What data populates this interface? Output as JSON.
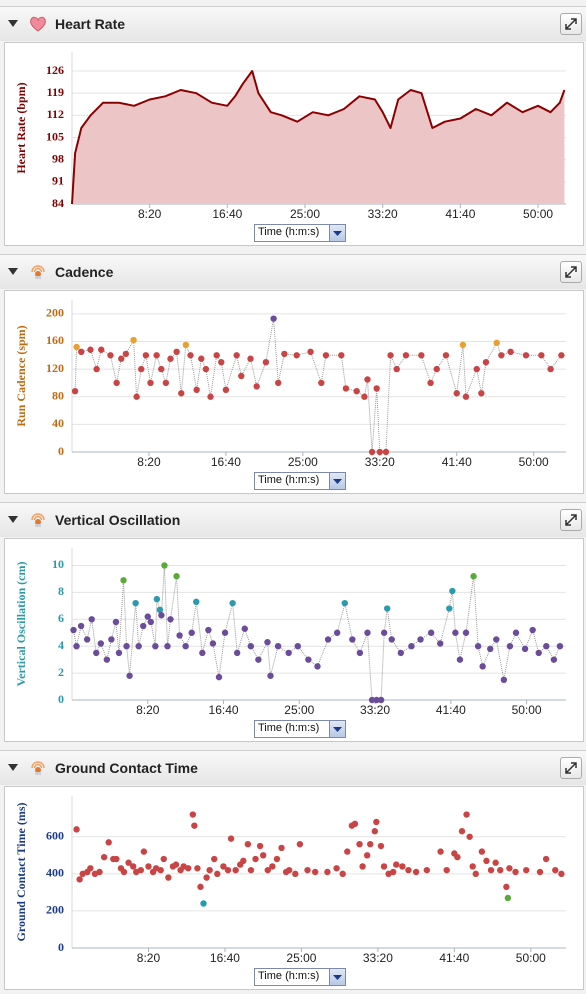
{
  "chart_data": [
    {
      "type": "line",
      "title": "Heart Rate",
      "ylabel": "Heart Rate (bpm)",
      "xlabel": "Time (h:m:s)",
      "axis_color": "#800000",
      "line_color": "#8b0000",
      "area_color": "#ecc6c6",
      "grid": true,
      "xlim": [
        0,
        3180
      ],
      "ylim": [
        84,
        132
      ],
      "xticks": [
        {
          "value": 500,
          "label": "8:20"
        },
        {
          "value": 1000,
          "label": "16:40"
        },
        {
          "value": 1500,
          "label": "25:00"
        },
        {
          "value": 2000,
          "label": "33:20"
        },
        {
          "value": 2500,
          "label": "41:40"
        },
        {
          "value": 3000,
          "label": "50:00"
        }
      ],
      "yticks": [
        84,
        91,
        98,
        105,
        112,
        119,
        126
      ],
      "x": [
        0,
        20,
        60,
        120,
        200,
        300,
        400,
        500,
        600,
        700,
        800,
        900,
        1000,
        1050,
        1100,
        1160,
        1200,
        1280,
        1350,
        1450,
        1550,
        1650,
        1750,
        1850,
        1950,
        2000,
        2050,
        2100,
        2180,
        2250,
        2320,
        2400,
        2500,
        2600,
        2700,
        2800,
        2900,
        3000,
        3080,
        3140,
        3170
      ],
      "values": [
        84,
        100,
        108,
        112,
        116,
        116,
        115,
        117,
        118,
        120,
        119,
        116,
        115,
        118,
        122,
        126,
        119,
        113,
        112,
        110,
        113,
        112,
        114,
        118,
        117,
        113,
        108,
        117,
        120,
        119,
        108,
        110,
        111,
        114,
        112,
        116,
        113,
        115,
        113,
        116,
        120
      ]
    },
    {
      "type": "scatter",
      "title": "Cadence",
      "ylabel": "Run Cadence (spm)",
      "xlabel": "Time (h:m:s)",
      "axis_color": "#c06a10",
      "line_color": "#999999",
      "connect": true,
      "grid": true,
      "xlim": [
        0,
        3210
      ],
      "ylim": [
        0,
        220
      ],
      "xticks": [
        {
          "value": 500,
          "label": "8:20"
        },
        {
          "value": 1000,
          "label": "16:40"
        },
        {
          "value": 1500,
          "label": "25:00"
        },
        {
          "value": 2000,
          "label": "33:20"
        },
        {
          "value": 2500,
          "label": "41:40"
        },
        {
          "value": 3000,
          "label": "50:00"
        }
      ],
      "yticks": [
        0,
        40,
        80,
        120,
        160,
        200
      ],
      "x": [
        20,
        30,
        60,
        120,
        160,
        190,
        250,
        290,
        320,
        350,
        400,
        420,
        450,
        480,
        510,
        550,
        580,
        610,
        640,
        680,
        710,
        740,
        770,
        810,
        840,
        870,
        900,
        940,
        970,
        1000,
        1070,
        1100,
        1160,
        1200,
        1260,
        1310,
        1340,
        1380,
        1460,
        1550,
        1620,
        1650,
        1750,
        1780,
        1850,
        1900,
        1920,
        1950,
        1980,
        2000,
        2040,
        2070,
        2110,
        2170,
        2270,
        2330,
        2370,
        2430,
        2500,
        2540,
        2560,
        2630,
        2660,
        2690,
        2760,
        2790,
        2850,
        2950,
        3050,
        3110,
        3180
      ],
      "values": [
        88,
        152,
        145,
        148,
        120,
        148,
        140,
        100,
        135,
        142,
        162,
        80,
        120,
        140,
        100,
        140,
        120,
        100,
        135,
        145,
        85,
        155,
        140,
        90,
        135,
        120,
        80,
        140,
        130,
        90,
        140,
        110,
        135,
        95,
        130,
        193,
        100,
        142,
        140,
        145,
        100,
        140,
        140,
        92,
        88,
        80,
        105,
        0,
        92,
        0,
        0,
        140,
        120,
        140,
        140,
        100,
        120,
        140,
        85,
        155,
        80,
        120,
        85,
        130,
        158,
        140,
        145,
        140,
        140,
        120,
        140
      ],
      "colors": [
        "#c94545",
        "#e8a030",
        "#c94545",
        "#c94545",
        "#c94545",
        "#c94545",
        "#c94545",
        "#c94545",
        "#c94545",
        "#c94545",
        "#e8a030",
        "#c94545",
        "#c94545",
        "#c94545",
        "#c94545",
        "#c94545",
        "#c94545",
        "#c94545",
        "#c94545",
        "#c94545",
        "#c94545",
        "#e8a030",
        "#c94545",
        "#c94545",
        "#c94545",
        "#c94545",
        "#c94545",
        "#c94545",
        "#c94545",
        "#c94545",
        "#c94545",
        "#c94545",
        "#c94545",
        "#c94545",
        "#c94545",
        "#6b4c9a",
        "#c94545",
        "#c94545",
        "#c94545",
        "#c94545",
        "#c94545",
        "#c94545",
        "#c94545",
        "#c94545",
        "#c94545",
        "#c94545",
        "#c94545",
        "#c94545",
        "#c94545",
        "#c94545",
        "#c94545",
        "#c94545",
        "#c94545",
        "#c94545",
        "#c94545",
        "#c94545",
        "#c94545",
        "#c94545",
        "#c94545",
        "#e8a030",
        "#c94545",
        "#c94545",
        "#c94545",
        "#c94545",
        "#e8a030",
        "#c94545",
        "#c94545",
        "#c94545",
        "#c94545",
        "#c94545",
        "#c94545"
      ]
    },
    {
      "type": "scatter",
      "title": "Vertical Oscillation",
      "ylabel": "Vertical Oscillation (cm)",
      "xlabel": "Time (h:m:s)",
      "axis_color": "#2a9aaa",
      "line_color": "#999999",
      "connect": true,
      "grid": true,
      "xlim": [
        0,
        3260
      ],
      "ylim": [
        0,
        11.3
      ],
      "xticks": [
        {
          "value": 500,
          "label": "8:20"
        },
        {
          "value": 1000,
          "label": "16:40"
        },
        {
          "value": 1500,
          "label": "25:00"
        },
        {
          "value": 2000,
          "label": "33:20"
        },
        {
          "value": 2500,
          "label": "41:40"
        },
        {
          "value": 3000,
          "label": "50:00"
        }
      ],
      "yticks": [
        0,
        2,
        4,
        6,
        8,
        10
      ],
      "x": [
        10,
        30,
        60,
        100,
        130,
        160,
        190,
        230,
        260,
        290,
        310,
        340,
        360,
        380,
        420,
        440,
        470,
        500,
        520,
        550,
        560,
        580,
        590,
        610,
        630,
        650,
        690,
        710,
        750,
        790,
        820,
        860,
        900,
        930,
        970,
        1010,
        1060,
        1090,
        1140,
        1180,
        1230,
        1290,
        1310,
        1360,
        1430,
        1490,
        1560,
        1620,
        1690,
        1750,
        1800,
        1850,
        1900,
        1950,
        1980,
        2010,
        2040,
        2060,
        2080,
        2110,
        2170,
        2240,
        2300,
        2370,
        2430,
        2490,
        2510,
        2530,
        2560,
        2600,
        2650,
        2680,
        2710,
        2760,
        2800,
        2850,
        2890,
        2930,
        2990,
        3040,
        3080,
        3130,
        3180,
        3220
      ],
      "values": [
        5.2,
        4.0,
        5.5,
        4.5,
        6.0,
        3.5,
        4.2,
        3.0,
        4.5,
        5.8,
        3.5,
        8.9,
        4.0,
        1.8,
        7.2,
        4.0,
        5.5,
        6.2,
        5.8,
        4.0,
        7.5,
        6.7,
        6.3,
        10,
        4.0,
        6.0,
        9.2,
        4.8,
        4.0,
        5.0,
        7.3,
        3.5,
        5.2,
        4.2,
        1.7,
        5.0,
        7.2,
        3.5,
        5.3,
        4.0,
        3.0,
        4.3,
        1.8,
        4.0,
        3.5,
        4.0,
        3.0,
        2.5,
        4.5,
        5.0,
        7.2,
        4.5,
        3.5,
        5.0,
        0,
        0,
        0,
        5.0,
        6.8,
        4.5,
        3.5,
        4.0,
        4.5,
        5.0,
        4.2,
        6.8,
        8.1,
        5.0,
        3.0,
        5.0,
        9.2,
        4.0,
        2.5,
        3.8,
        4.5,
        1.5,
        4.0,
        5.0,
        3.8,
        5.2,
        3.5,
        4.0,
        3.0,
        4.0
      ],
      "colors": [
        "#6b4c9a",
        "#6b4c9a",
        "#6b4c9a",
        "#6b4c9a",
        "#6b4c9a",
        "#6b4c9a",
        "#6b4c9a",
        "#6b4c9a",
        "#6b4c9a",
        "#6b4c9a",
        "#6b4c9a",
        "#5aaa3a",
        "#6b4c9a",
        "#6b4c9a",
        "#2a9ab0",
        "#6b4c9a",
        "#6b4c9a",
        "#6b4c9a",
        "#6b4c9a",
        "#6b4c9a",
        "#2a9ab0",
        "#2a9ab0",
        "#6b4c9a",
        "#5aaa3a",
        "#6b4c9a",
        "#6b4c9a",
        "#5aaa3a",
        "#6b4c9a",
        "#6b4c9a",
        "#6b4c9a",
        "#2a9ab0",
        "#6b4c9a",
        "#6b4c9a",
        "#6b4c9a",
        "#6b4c9a",
        "#6b4c9a",
        "#2a9ab0",
        "#6b4c9a",
        "#6b4c9a",
        "#6b4c9a",
        "#6b4c9a",
        "#6b4c9a",
        "#6b4c9a",
        "#6b4c9a",
        "#6b4c9a",
        "#6b4c9a",
        "#6b4c9a",
        "#6b4c9a",
        "#6b4c9a",
        "#6b4c9a",
        "#2a9ab0",
        "#6b4c9a",
        "#6b4c9a",
        "#6b4c9a",
        "#6b4c9a",
        "#6b4c9a",
        "#6b4c9a",
        "#6b4c9a",
        "#2a9ab0",
        "#6b4c9a",
        "#6b4c9a",
        "#6b4c9a",
        "#6b4c9a",
        "#6b4c9a",
        "#6b4c9a",
        "#2a9ab0",
        "#2a9ab0",
        "#6b4c9a",
        "#6b4c9a",
        "#6b4c9a",
        "#5aaa3a",
        "#6b4c9a",
        "#6b4c9a",
        "#6b4c9a",
        "#6b4c9a",
        "#6b4c9a",
        "#6b4c9a",
        "#6b4c9a",
        "#6b4c9a",
        "#6b4c9a",
        "#6b4c9a",
        "#6b4c9a",
        "#6b4c9a",
        "#6b4c9a"
      ]
    },
    {
      "type": "scatter",
      "title": "Ground Contact Time",
      "ylabel": "Ground Contact Time (ms)",
      "xlabel": "Time (h:m:s)",
      "axis_color": "#1a3a8a",
      "connect": false,
      "grid": true,
      "xlim": [
        0,
        3230
      ],
      "ylim": [
        0,
        820
      ],
      "xticks": [
        {
          "value": 500,
          "label": "8:20"
        },
        {
          "value": 1000,
          "label": "16:40"
        },
        {
          "value": 1500,
          "label": "25:00"
        },
        {
          "value": 2000,
          "label": "33:20"
        },
        {
          "value": 2500,
          "label": "41:40"
        },
        {
          "value": 3000,
          "label": "50:00"
        }
      ],
      "yticks": [
        0,
        200,
        400,
        600
      ],
      "x": [
        30,
        50,
        70,
        100,
        120,
        150,
        180,
        210,
        240,
        270,
        290,
        320,
        340,
        370,
        400,
        420,
        450,
        470,
        500,
        530,
        550,
        580,
        600,
        630,
        660,
        680,
        710,
        730,
        760,
        790,
        800,
        820,
        840,
        860,
        880,
        900,
        930,
        950,
        990,
        1020,
        1040,
        1070,
        1100,
        1120,
        1150,
        1170,
        1200,
        1230,
        1250,
        1280,
        1310,
        1340,
        1370,
        1400,
        1420,
        1460,
        1490,
        1540,
        1590,
        1670,
        1730,
        1770,
        1800,
        1830,
        1850,
        1880,
        1900,
        1930,
        1950,
        1980,
        1990,
        2020,
        2040,
        2070,
        2100,
        2120,
        2160,
        2200,
        2250,
        2320,
        2410,
        2450,
        2500,
        2520,
        2550,
        2580,
        2600,
        2620,
        2640,
        2680,
        2710,
        2740,
        2770,
        2800,
        2840,
        2850,
        2860,
        2900,
        2970,
        3060,
        3100,
        3160,
        3200
      ],
      "values": [
        640,
        370,
        400,
        410,
        430,
        400,
        410,
        490,
        570,
        480,
        480,
        430,
        410,
        460,
        440,
        410,
        420,
        520,
        440,
        410,
        430,
        420,
        480,
        380,
        440,
        450,
        420,
        440,
        430,
        720,
        660,
        430,
        330,
        240,
        380,
        420,
        480,
        400,
        440,
        420,
        590,
        420,
        450,
        470,
        560,
        420,
        480,
        550,
        500,
        420,
        440,
        480,
        540,
        410,
        420,
        400,
        560,
        420,
        410,
        410,
        430,
        400,
        520,
        660,
        670,
        560,
        440,
        500,
        560,
        630,
        680,
        550,
        440,
        400,
        410,
        450,
        440,
        420,
        410,
        420,
        520,
        420,
        510,
        490,
        630,
        720,
        600,
        440,
        400,
        520,
        470,
        420,
        460,
        420,
        330,
        270,
        430,
        410,
        420,
        410,
        480,
        420,
        400
      ],
      "colors": [
        "#c94545",
        "#c94545",
        "#c94545",
        "#c94545",
        "#c94545",
        "#c94545",
        "#c94545",
        "#c94545",
        "#c94545",
        "#c94545",
        "#c94545",
        "#c94545",
        "#c94545",
        "#c94545",
        "#c94545",
        "#c94545",
        "#c94545",
        "#c94545",
        "#c94545",
        "#c94545",
        "#c94545",
        "#c94545",
        "#c94545",
        "#c94545",
        "#c94545",
        "#c94545",
        "#c94545",
        "#c94545",
        "#c94545",
        "#c94545",
        "#c94545",
        "#c94545",
        "#c94545",
        "#2a9ab0",
        "#c94545",
        "#c94545",
        "#c94545",
        "#c94545",
        "#c94545",
        "#c94545",
        "#c94545",
        "#c94545",
        "#c94545",
        "#c94545",
        "#c94545",
        "#c94545",
        "#c94545",
        "#c94545",
        "#c94545",
        "#c94545",
        "#c94545",
        "#c94545",
        "#c94545",
        "#c94545",
        "#c94545",
        "#c94545",
        "#c94545",
        "#c94545",
        "#c94545",
        "#c94545",
        "#c94545",
        "#c94545",
        "#c94545",
        "#c94545",
        "#c94545",
        "#c94545",
        "#c94545",
        "#c94545",
        "#c94545",
        "#c94545",
        "#c94545",
        "#c94545",
        "#c94545",
        "#c94545",
        "#c94545",
        "#c94545",
        "#c94545",
        "#c94545",
        "#c94545",
        "#c94545",
        "#c94545",
        "#c94545",
        "#c94545",
        "#c94545",
        "#c94545",
        "#c94545",
        "#c94545",
        "#c94545",
        "#c94545",
        "#c94545",
        "#c94545",
        "#c94545",
        "#c94545",
        "#c94545",
        "#c94545",
        "#5aaa3a",
        "#c94545",
        "#c94545",
        "#c94545",
        "#c94545",
        "#c94545",
        "#c94545",
        "#c94545"
      ]
    }
  ]
}
